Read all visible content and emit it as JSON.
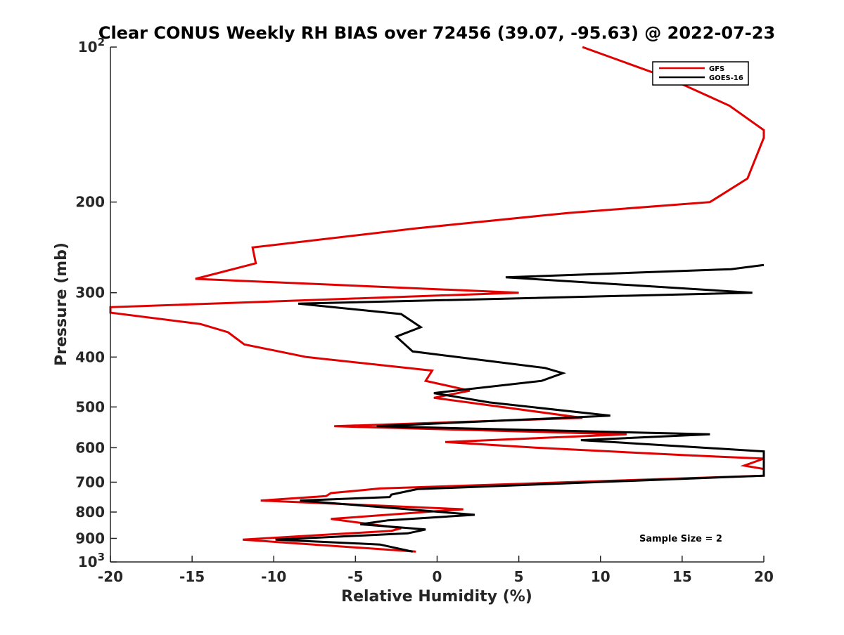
{
  "chart_data": {
    "type": "line",
    "title": "Clear CONUS Weekly RH BIAS over 72456 (39.07, -95.63) @ 2022-07-23",
    "xlabel": "Relative Humidity (%)",
    "ylabel": "Pressure (mb)",
    "xlim": [
      -20,
      20
    ],
    "ylim": [
      100,
      1000
    ],
    "yscale": "log",
    "yreversed": true,
    "xticks": [
      -20,
      -15,
      -10,
      -5,
      0,
      5,
      10,
      15,
      20
    ],
    "xtick_labels": [
      "-20",
      "-15",
      "-10",
      "-5",
      "0",
      "5",
      "10",
      "15",
      "20"
    ],
    "yticks": [
      100,
      200,
      300,
      400,
      500,
      600,
      700,
      800,
      900,
      1000
    ],
    "ytick_labels": [
      {
        "base": "10",
        "exp": "2"
      },
      {
        "text": "200"
      },
      {
        "text": "300"
      },
      {
        "text": "400"
      },
      {
        "text": "500"
      },
      {
        "text": "600"
      },
      {
        "text": "700"
      },
      {
        "text": "800"
      },
      {
        "text": "900"
      },
      {
        "base": "10",
        "exp": "3"
      }
    ],
    "legend_position": "top-right",
    "annotation": "Sample Size = 2",
    "series": [
      {
        "name": "GFS",
        "color": "#e00000",
        "points": [
          [
            8.9,
            100
          ],
          [
            14.2,
            115
          ],
          [
            17.9,
            130
          ],
          [
            20,
            145
          ],
          [
            20,
            150
          ],
          [
            19.0,
            180
          ],
          [
            16.7,
            200
          ],
          [
            8.0,
            210
          ],
          [
            -1.3,
            225
          ],
          [
            -11.3,
            245
          ],
          [
            -11.1,
            263
          ],
          [
            -14.8,
            282
          ],
          [
            5.0,
            300
          ],
          [
            -20,
            320
          ],
          [
            -20,
            328
          ],
          [
            -14.5,
            345
          ],
          [
            -12.8,
            358
          ],
          [
            -11.8,
            378
          ],
          [
            -8.0,
            400
          ],
          [
            -0.3,
            425
          ],
          [
            -0.7,
            445
          ],
          [
            2.0,
            465
          ],
          [
            -0.2,
            480
          ],
          [
            8.9,
            525
          ],
          [
            -6.3,
            545
          ],
          [
            11.6,
            565
          ],
          [
            0.5,
            585
          ],
          [
            6.1,
            600
          ],
          [
            15.0,
            620
          ],
          [
            20,
            630
          ],
          [
            18.8,
            650
          ],
          [
            20,
            660
          ],
          [
            20,
            680
          ],
          [
            -3.5,
            720
          ],
          [
            -6.5,
            735
          ],
          [
            -6.8,
            745
          ],
          [
            -10.8,
            760
          ],
          [
            1.6,
            790
          ],
          [
            -6.5,
            825
          ],
          [
            -2.2,
            860
          ],
          [
            -2.8,
            870
          ],
          [
            -11.9,
            905
          ],
          [
            -1.3,
            955
          ]
        ]
      },
      {
        "name": "GOES-16",
        "color": "#000000",
        "points": [
          [
            20,
            265
          ],
          [
            18.0,
            270
          ],
          [
            4.2,
            280
          ],
          [
            19.3,
            300
          ],
          [
            -8.5,
            315
          ],
          [
            -2.2,
            330
          ],
          [
            -1.0,
            350
          ],
          [
            -2.5,
            365
          ],
          [
            -1.5,
            390
          ],
          [
            6.6,
            420
          ],
          [
            7.7,
            430
          ],
          [
            6.4,
            445
          ],
          [
            -0.2,
            470
          ],
          [
            3.2,
            490
          ],
          [
            10.6,
            520
          ],
          [
            -3.7,
            545
          ],
          [
            16.7,
            565
          ],
          [
            8.8,
            580
          ],
          [
            20,
            610
          ],
          [
            20,
            680
          ],
          [
            -1.2,
            722
          ],
          [
            -2.8,
            740
          ],
          [
            -2.9,
            748
          ],
          [
            -8.4,
            760
          ],
          [
            -1.8,
            790
          ],
          [
            2.3,
            810
          ],
          [
            -3.0,
            830
          ],
          [
            -4.7,
            845
          ],
          [
            -0.7,
            865
          ],
          [
            -1.8,
            880
          ],
          [
            -9.9,
            905
          ],
          [
            -3.5,
            925
          ],
          [
            -1.5,
            955
          ]
        ]
      }
    ]
  }
}
